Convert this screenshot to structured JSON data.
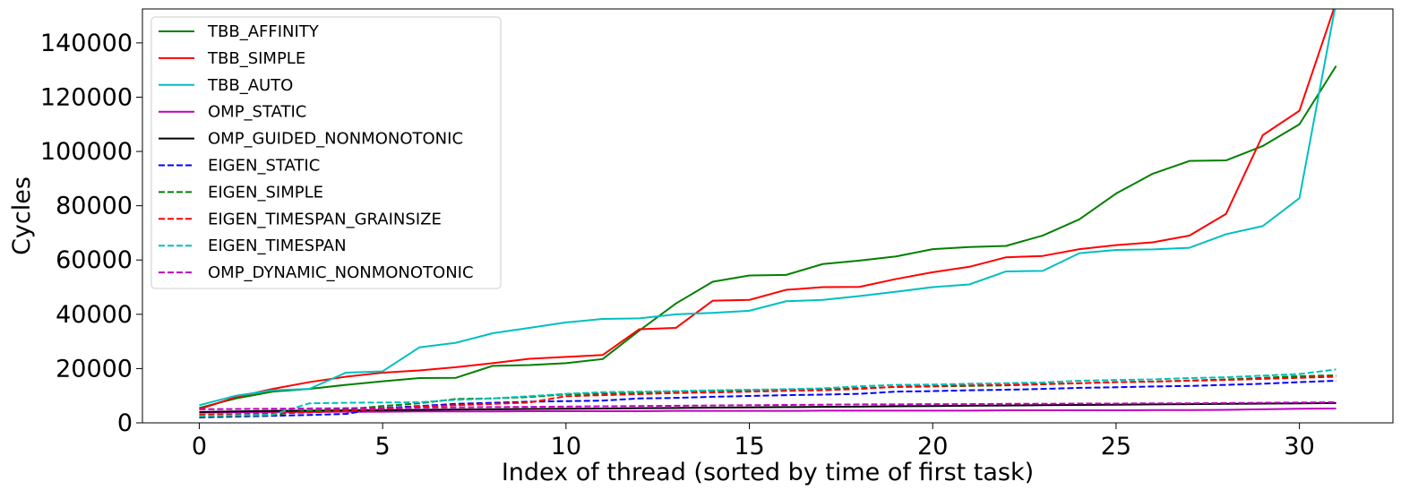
{
  "chart_data": {
    "type": "line",
    "title": "",
    "xlabel": "Index of thread (sorted by time of first task)",
    "ylabel": "Cycles",
    "xlim": [
      -1.55,
      32.55
    ],
    "ylim": [
      0,
      152500
    ],
    "xticks": [
      0,
      5,
      10,
      15,
      20,
      25,
      30
    ],
    "yticks": [
      0,
      20000,
      40000,
      60000,
      80000,
      100000,
      120000,
      140000
    ],
    "grid": false,
    "legend_position": "top-left",
    "x": [
      0,
      1,
      2,
      3,
      4,
      5,
      6,
      7,
      8,
      9,
      10,
      11,
      12,
      13,
      14,
      15,
      16,
      17,
      18,
      19,
      20,
      21,
      22,
      23,
      24,
      25,
      26,
      27,
      28,
      29,
      30,
      31
    ],
    "series": [
      {
        "name": "TBB_AFFINITY",
        "color": "#008000",
        "style": "solid",
        "values": [
          5500,
          9000,
          11500,
          12500,
          14000,
          15300,
          16500,
          16600,
          21000,
          21300,
          22000,
          23500,
          34000,
          44000,
          52000,
          54300,
          54500,
          58500,
          59800,
          61300,
          64000,
          64800,
          65200,
          69000,
          75000,
          84500,
          91800,
          96500,
          96700,
          102000,
          110000,
          131500
        ]
      },
      {
        "name": "TBB_SIMPLE",
        "color": "#ff0000",
        "style": "solid",
        "values": [
          5000,
          9500,
          12500,
          15000,
          17000,
          18500,
          19300,
          20500,
          22000,
          23600,
          24300,
          25000,
          34500,
          35000,
          45000,
          45300,
          49000,
          50000,
          50100,
          53000,
          55500,
          57500,
          61000,
          61500,
          64000,
          65500,
          66500,
          69000,
          77000,
          106000,
          115000,
          155000
        ]
      },
      {
        "name": "TBB_AUTO",
        "color": "#00bfbf",
        "style": "solid",
        "values": [
          6500,
          10000,
          12000,
          12500,
          18500,
          19000,
          27800,
          29500,
          33000,
          35000,
          37000,
          38300,
          38500,
          40000,
          40500,
          41300,
          44800,
          45300,
          46700,
          48300,
          50000,
          51000,
          55800,
          56000,
          62500,
          63700,
          63900,
          64500,
          69500,
          72500,
          82800,
          155000
        ]
      },
      {
        "name": "OMP_STATIC",
        "color": "#bf00bf",
        "style": "solid",
        "values": [
          3800,
          3900,
          4000,
          4000,
          4100,
          4100,
          4200,
          4200,
          4200,
          4300,
          4300,
          4300,
          4300,
          4400,
          4400,
          4400,
          4400,
          4500,
          4500,
          4500,
          4500,
          4500,
          4600,
          4600,
          4600,
          4600,
          4700,
          4700,
          4800,
          5000,
          5200,
          5300
        ]
      },
      {
        "name": "OMP_GUIDED_NONMONOTONIC",
        "color": "#000000",
        "style": "solid",
        "values": [
          4000,
          4200,
          4400,
          4500,
          4600,
          4700,
          4800,
          4900,
          5000,
          5100,
          5200,
          5300,
          5400,
          5500,
          5600,
          5700,
          5800,
          5900,
          6000,
          6100,
          6200,
          6300,
          6400,
          6500,
          6600,
          6700,
          6800,
          6900,
          7000,
          7100,
          7200,
          7300
        ]
      },
      {
        "name": "EIGEN_STATIC",
        "color": "#0000ff",
        "style": "dashed",
        "values": [
          2000,
          2300,
          2600,
          2900,
          3300,
          5500,
          6200,
          7000,
          7400,
          7800,
          8000,
          8200,
          9000,
          9200,
          9600,
          9900,
          10200,
          10400,
          10700,
          11500,
          11700,
          12000,
          12200,
          12500,
          12900,
          13100,
          13400,
          13600,
          14000,
          14400,
          15000,
          15500
        ]
      },
      {
        "name": "EIGEN_SIMPLE",
        "color": "#008000",
        "style": "dashed",
        "values": [
          2300,
          2600,
          2900,
          4500,
          5000,
          6200,
          7200,
          8800,
          9000,
          9500,
          10500,
          10800,
          11200,
          11500,
          11800,
          12000,
          12200,
          12400,
          12800,
          13200,
          13400,
          13600,
          13800,
          14200,
          14600,
          15000,
          15200,
          15600,
          16000,
          16600,
          17200,
          17500
        ]
      },
      {
        "name": "EIGEN_TIMESPAN_GRAINSIZE",
        "color": "#ff0000",
        "style": "dashed",
        "values": [
          3000,
          3200,
          3500,
          3800,
          4500,
          5000,
          6000,
          6500,
          7000,
          7500,
          9800,
          10200,
          10600,
          11000,
          11200,
          11500,
          11800,
          12000,
          12500,
          13300,
          13600,
          13800,
          14000,
          14300,
          14600,
          15000,
          15200,
          15500,
          15800,
          16200,
          16600,
          17000
        ]
      },
      {
        "name": "EIGEN_TIMESPAN",
        "color": "#00bfbf",
        "style": "dashed",
        "values": [
          2500,
          2800,
          3000,
          7200,
          7400,
          7500,
          7600,
          8500,
          9000,
          9800,
          10700,
          11300,
          11500,
          11700,
          12000,
          12200,
          12400,
          12700,
          13500,
          14000,
          14100,
          14400,
          14600,
          14900,
          15500,
          15800,
          16000,
          16500,
          16800,
          17400,
          18000,
          19700
        ]
      },
      {
        "name": "OMP_DYNAMIC_NONMONOTONIC",
        "color": "#bf00bf",
        "style": "dashed",
        "values": [
          5000,
          5100,
          5200,
          5300,
          5400,
          5500,
          5600,
          5700,
          5800,
          5900,
          6000,
          6100,
          6200,
          6300,
          6400,
          6500,
          6600,
          6700,
          6800,
          6800,
          6900,
          6900,
          7000,
          7000,
          7100,
          7100,
          7200,
          7200,
          7300,
          7400,
          7500,
          7600
        ]
      }
    ]
  }
}
